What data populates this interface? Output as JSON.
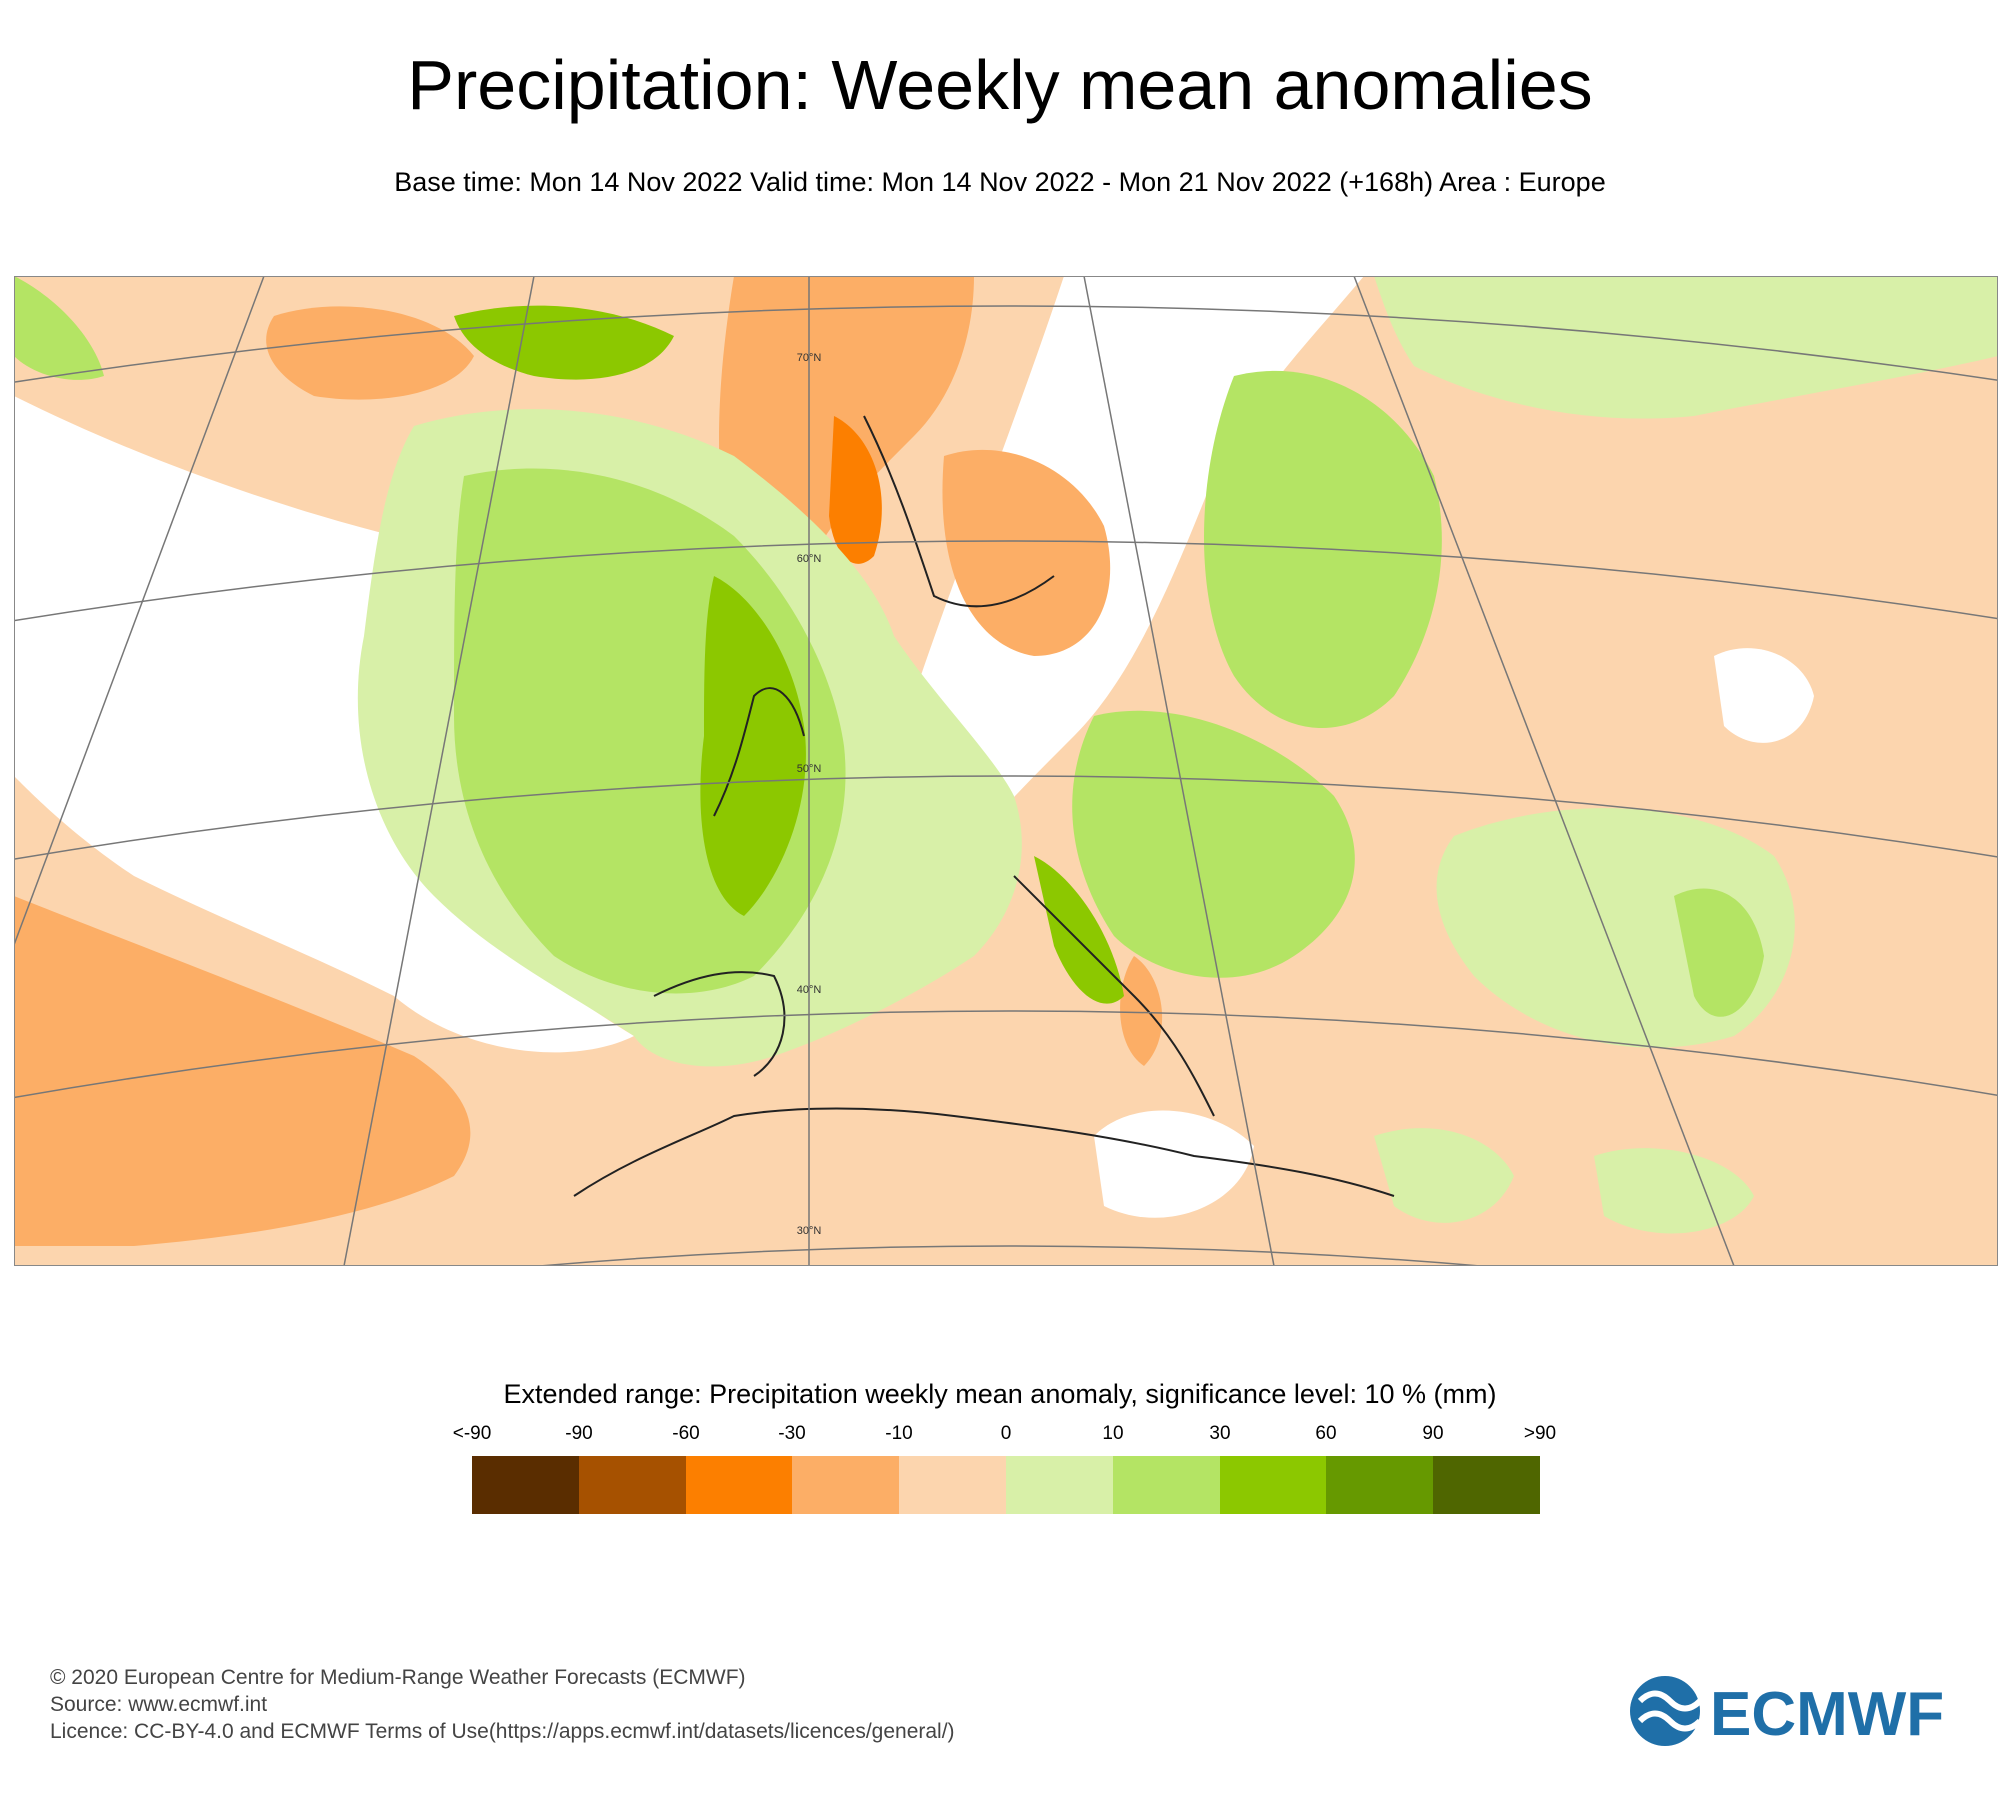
{
  "header": {
    "title": "Precipitation: Weekly mean anomalies",
    "subtitle": "Base time: Mon 14 Nov 2022 Valid time: Mon 14 Nov 2022 - Mon 21 Nov 2022 (+168h) Area : Europe"
  },
  "map": {
    "latitude_labels": [
      "70°N",
      "60°N",
      "50°N",
      "40°N",
      "30°N"
    ],
    "colors": {
      "ocean_dry": "#fcd5ae",
      "ocean_drier": "#fcae66",
      "wet": "#d8f0a8",
      "wetter": "#b4e464",
      "wettest": "#8cc800",
      "very_wet": "#669900",
      "dry_strong": "#fc7f00",
      "not_significant": "#ffffff"
    }
  },
  "legend": {
    "title": "Extended range: Precipitation weekly mean anomaly, significance level: 10 % (mm)",
    "tick_labels": [
      "<-90",
      "-90",
      "-60",
      "-30",
      "-10",
      "0",
      "10",
      "30",
      "60",
      "90",
      ">90"
    ],
    "colors": [
      "#5a2d00",
      "#a65100",
      "#fc7f00",
      "#fcae66",
      "#fcd5ae",
      "#d8f0a8",
      "#b4e464",
      "#8cc800",
      "#669900",
      "#4f6600"
    ]
  },
  "footer": {
    "line1": "© 2020 European Centre for Medium-Range Weather Forecasts (ECMWF)",
    "line2": "Source: www.ecmwf.int",
    "line3": "Licence: CC-BY-4.0 and ECMWF Terms of Use(https://apps.ecmwf.int/datasets/licences/general/)"
  },
  "logo": {
    "text": "ECMWF",
    "color": "#1f6fa8"
  }
}
